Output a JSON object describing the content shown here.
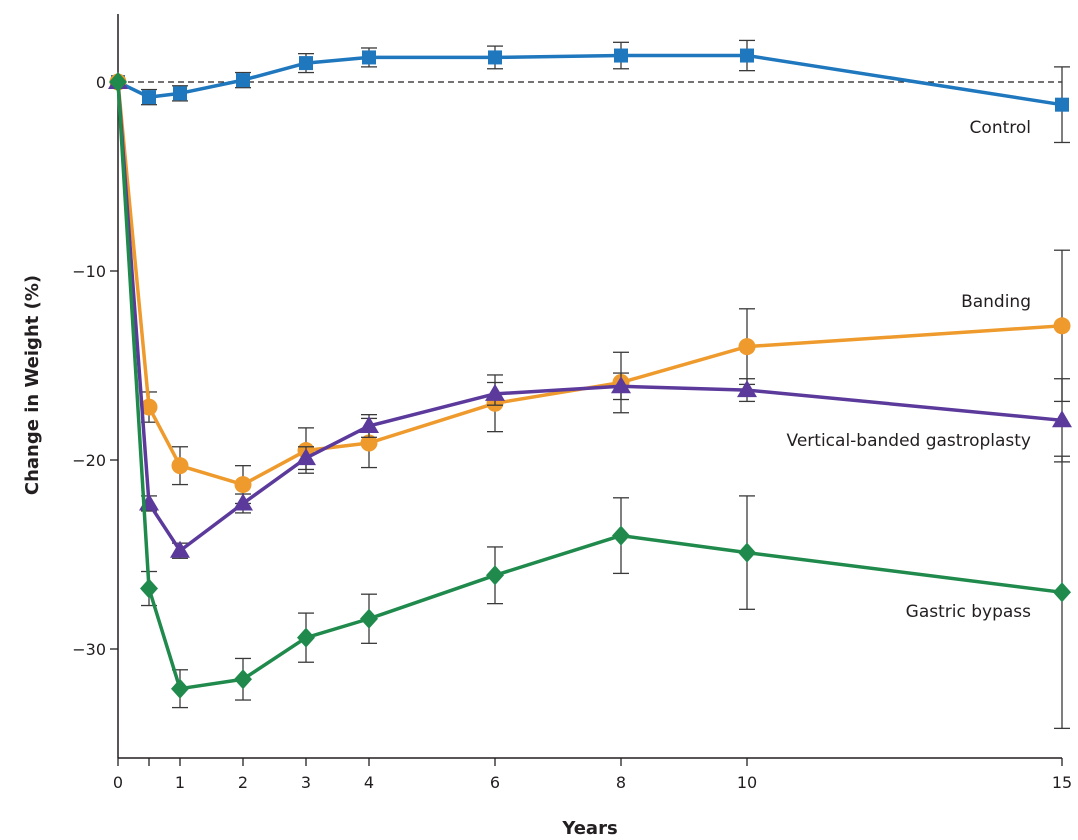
{
  "chart_data": {
    "type": "line",
    "xlabel": "Years",
    "ylabel": "Change in Weight (%)",
    "xlim": [
      0,
      15
    ],
    "ylim": [
      -36,
      4
    ],
    "xticks": [
      0,
      1,
      2,
      3,
      4,
      6,
      8,
      10,
      15
    ],
    "yticks": [
      0,
      -10,
      -20,
      -30
    ],
    "minor_xticks": [
      0.5
    ],
    "reference_line": 0,
    "colors": {
      "control": "#1f77be",
      "banding": "#ee9a2c",
      "vbg": "#5b3a9c",
      "bypass": "#1f8a4c",
      "axis": "#231f20"
    },
    "series": [
      {
        "name": "Control",
        "key": "control",
        "marker": "square",
        "x": [
          0,
          0.5,
          1,
          2,
          3,
          4,
          6,
          8,
          10,
          15
        ],
        "values": [
          0,
          -0.8,
          -0.6,
          0.1,
          1.0,
          1.3,
          1.3,
          1.4,
          1.4,
          -1.2
        ],
        "err": [
          0.4,
          0.4,
          0.4,
          0.4,
          0.5,
          0.5,
          0.6,
          0.7,
          0.8,
          2.0
        ]
      },
      {
        "name": "Banding",
        "key": "banding",
        "marker": "circle",
        "x": [
          0,
          0.5,
          1,
          2,
          3,
          4,
          6,
          8,
          10,
          15
        ],
        "values": [
          0,
          -17.2,
          -20.3,
          -21.3,
          -19.5,
          -19.1,
          -17.0,
          -15.9,
          -14.0,
          -12.9
        ],
        "err": [
          0.3,
          0.8,
          1.0,
          1.0,
          1.2,
          1.3,
          1.5,
          1.6,
          2.0,
          4.0
        ]
      },
      {
        "name": "Vertical-banded gastroplasty",
        "key": "vbg",
        "marker": "triangle",
        "x": [
          0,
          0.5,
          1,
          2,
          3,
          4,
          6,
          8,
          10,
          15
        ],
        "values": [
          0,
          -22.3,
          -24.8,
          -22.3,
          -19.9,
          -18.2,
          -16.5,
          -16.1,
          -16.3,
          -17.9
        ],
        "err": [
          0.3,
          0.4,
          0.4,
          0.5,
          0.6,
          0.6,
          0.6,
          0.7,
          0.6,
          2.2
        ]
      },
      {
        "name": "Gastric bypass",
        "key": "bypass",
        "marker": "diamond",
        "x": [
          0,
          0.5,
          1,
          2,
          3,
          4,
          6,
          8,
          10,
          15
        ],
        "values": [
          0,
          -26.8,
          -32.1,
          -31.6,
          -29.4,
          -28.4,
          -26.1,
          -24.0,
          -24.9,
          -27.0
        ],
        "err": [
          0.3,
          0.9,
          1.0,
          1.1,
          1.3,
          1.3,
          1.5,
          2.0,
          3.0,
          7.2
        ]
      }
    ],
    "annotations": [
      {
        "key": "control",
        "text": "Control"
      },
      {
        "key": "banding",
        "text": "Banding"
      },
      {
        "key": "vbg",
        "text": "Vertical-banded gastroplasty"
      },
      {
        "key": "bypass",
        "text": "Gastric bypass"
      }
    ]
  }
}
